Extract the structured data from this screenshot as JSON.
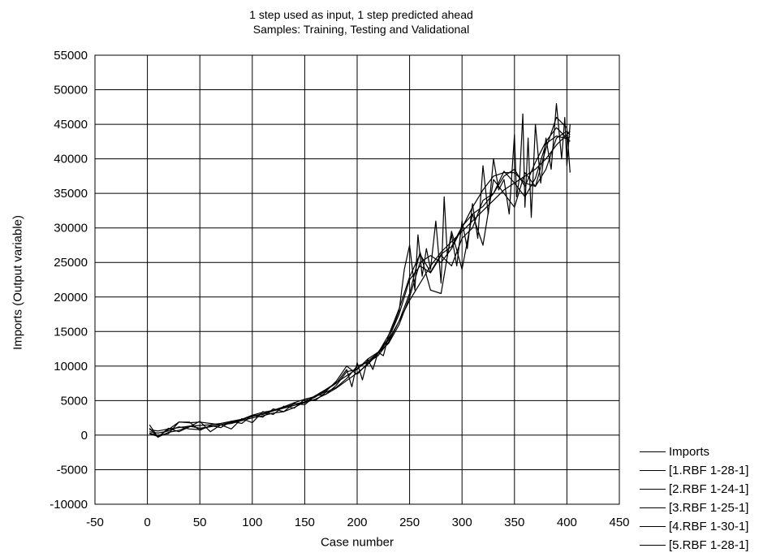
{
  "chart_data": {
    "type": "line",
    "title": "1 step used as input, 1 step predicted ahead",
    "subtitle": "Samples: Training, Testing and Validational",
    "xlabel": "Case number",
    "ylabel": "Imports (Output variable)",
    "xlim": [
      -50,
      450
    ],
    "ylim": [
      -10000,
      55000
    ],
    "xticks": [
      -50,
      0,
      50,
      100,
      150,
      200,
      250,
      300,
      350,
      400,
      450
    ],
    "yticks": [
      -10000,
      -5000,
      0,
      5000,
      10000,
      15000,
      20000,
      25000,
      30000,
      35000,
      40000,
      45000,
      50000,
      55000
    ],
    "grid": true,
    "legend_position": "bottom-right outside",
    "line_color": "#000000",
    "series": [
      {
        "name": "Imports",
        "x": [
          2,
          10,
          20,
          30,
          40,
          50,
          60,
          70,
          80,
          90,
          100,
          110,
          120,
          130,
          140,
          150,
          160,
          170,
          180,
          190,
          195,
          200,
          205,
          210,
          215,
          220,
          225,
          230,
          235,
          240,
          245,
          250,
          255,
          258,
          262,
          266,
          270,
          275,
          280,
          283,
          286,
          290,
          295,
          300,
          305,
          310,
          315,
          320,
          325,
          330,
          335,
          340,
          345,
          350,
          352,
          355,
          358,
          360,
          363,
          366,
          370,
          375,
          380,
          385,
          390,
          395,
          398,
          400,
          403
        ],
        "y": [
          500,
          300,
          600,
          1200,
          900,
          800,
          1300,
          1500,
          1800,
          2200,
          2800,
          3000,
          3500,
          4000,
          4500,
          4800,
          5500,
          6500,
          7500,
          9500,
          7000,
          10500,
          8000,
          11000,
          9500,
          12000,
          11500,
          14500,
          16000,
          18000,
          24000,
          27500,
          21000,
          29000,
          23000,
          27000,
          24000,
          31000,
          22000,
          34500,
          26000,
          29000,
          24500,
          31000,
          27000,
          33500,
          28500,
          39000,
          32000,
          40000,
          35500,
          37000,
          32000,
          43500,
          34500,
          37500,
          46500,
          33000,
          43000,
          31500,
          45000,
          36500,
          43000,
          38500,
          48000,
          40000,
          46000,
          39000,
          45000
        ]
      },
      {
        "name": "[1.RBF 1-28-1]",
        "x": [
          2,
          10,
          20,
          30,
          40,
          50,
          60,
          70,
          80,
          90,
          100,
          110,
          120,
          130,
          140,
          150,
          160,
          170,
          180,
          190,
          200,
          210,
          220,
          230,
          240,
          250,
          260,
          270,
          280,
          290,
          300,
          310,
          320,
          330,
          340,
          350,
          360,
          370,
          380,
          390,
          400,
          403
        ],
        "y": [
          800,
          600,
          900,
          1100,
          1300,
          1400,
          1500,
          1700,
          2000,
          2300,
          2700,
          3100,
          3500,
          3900,
          4300,
          4700,
          5200,
          5900,
          6800,
          7900,
          9000,
          10200,
          11800,
          13800,
          16500,
          19500,
          22000,
          24500,
          26500,
          28000,
          29500,
          31000,
          32500,
          34000,
          35500,
          36500,
          37500,
          38500,
          40000,
          42000,
          43500,
          44000
        ]
      },
      {
        "name": "[2.RBF 1-24-1]",
        "x": [
          2,
          10,
          20,
          30,
          40,
          50,
          60,
          70,
          80,
          90,
          100,
          110,
          120,
          130,
          140,
          150,
          160,
          170,
          180,
          190,
          200,
          210,
          220,
          230,
          240,
          250,
          260,
          270,
          280,
          290,
          300,
          310,
          320,
          330,
          340,
          350,
          360,
          370,
          380,
          390,
          400,
          403
        ],
        "y": [
          200,
          -200,
          800,
          1900,
          1900,
          700,
          1400,
          1100,
          2000,
          1700,
          2900,
          2600,
          3800,
          3400,
          4600,
          4400,
          5700,
          5900,
          7200,
          9200,
          9500,
          11000,
          12000,
          14000,
          17500,
          22500,
          24500,
          23500,
          26000,
          24500,
          28500,
          30000,
          34000,
          35000,
          37500,
          38500,
          36000,
          39500,
          42500,
          44500,
          43000,
          42500
        ]
      },
      {
        "name": "[3.RBF 1-25-1]",
        "x": [
          2,
          10,
          20,
          30,
          40,
          50,
          60,
          70,
          80,
          90,
          100,
          110,
          120,
          130,
          140,
          150,
          160,
          170,
          180,
          190,
          200,
          210,
          220,
          230,
          240,
          250,
          260,
          270,
          280,
          290,
          300,
          310,
          320,
          330,
          340,
          350,
          360,
          370,
          380,
          390,
          400,
          403
        ],
        "y": [
          1500,
          -300,
          1000,
          500,
          1200,
          2000,
          500,
          1500,
          900,
          2400,
          1800,
          3400,
          3000,
          4200,
          3900,
          5200,
          5000,
          6200,
          6900,
          8200,
          10000,
          10500,
          11500,
          13500,
          16500,
          20500,
          26500,
          21000,
          20500,
          29500,
          24000,
          32000,
          27500,
          37000,
          35000,
          33000,
          38000,
          36000,
          41500,
          46000,
          44500,
          38000
        ]
      },
      {
        "name": "[4.RBF 1-30-1]",
        "x": [
          2,
          10,
          20,
          30,
          40,
          50,
          60,
          70,
          80,
          90,
          100,
          110,
          120,
          130,
          140,
          150,
          160,
          170,
          180,
          190,
          200,
          210,
          220,
          230,
          240,
          250,
          260,
          270,
          280,
          290,
          300,
          310,
          320,
          330,
          340,
          350,
          360,
          370,
          380,
          390,
          400,
          403
        ],
        "y": [
          300,
          0,
          200,
          1900,
          1800,
          1900,
          1700,
          1500,
          1700,
          2100,
          2500,
          2800,
          3200,
          3400,
          4000,
          4800,
          5700,
          6600,
          7600,
          8600,
          9600,
          10700,
          11900,
          13300,
          16000,
          20000,
          25000,
          26000,
          25000,
          27000,
          30000,
          33000,
          35500,
          37500,
          38000,
          38000,
          36500,
          36000,
          38500,
          43000,
          44000,
          43500
        ]
      },
      {
        "name": "[5.RBF 1-28-1]",
        "x": [
          2,
          10,
          20,
          30,
          40,
          50,
          60,
          70,
          80,
          90,
          100,
          110,
          120,
          130,
          140,
          150,
          160,
          170,
          180,
          190,
          200,
          210,
          220,
          230,
          240,
          250,
          260,
          270,
          280,
          290,
          300,
          310,
          320,
          330,
          340,
          350,
          360,
          370,
          380,
          390,
          400,
          403
        ],
        "y": [
          1000,
          -300,
          400,
          700,
          1300,
          1000,
          1200,
          1500,
          1900,
          2300,
          2900,
          3300,
          3600,
          4100,
          4700,
          5200,
          5600,
          6300,
          7800,
          10000,
          8800,
          10400,
          11900,
          14500,
          18300,
          22900,
          26200,
          23600,
          26200,
          27300,
          30200,
          32000,
          33100,
          35000,
          38200,
          36500,
          34500,
          37200,
          42200,
          43300,
          42900,
          43200
        ]
      }
    ]
  }
}
